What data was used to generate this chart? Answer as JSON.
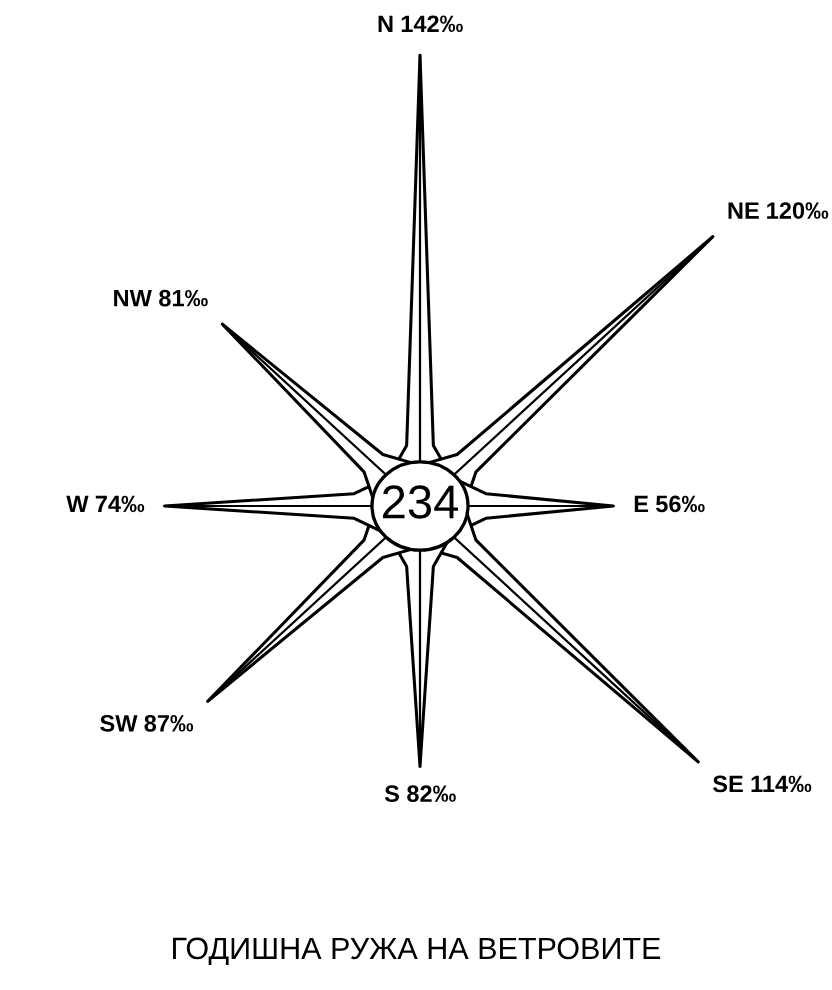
{
  "chart_data": {
    "type": "other",
    "title": "ГОДИШНА РУЖА НА ВЕТРОВИТЕ",
    "categories": [
      "N",
      "NE",
      "E",
      "SE",
      "S",
      "SW",
      "W",
      "NW"
    ],
    "values": [
      142,
      120,
      56,
      114,
      82,
      87,
      74,
      81
    ],
    "value_labels": [
      "142‰",
      "120‰",
      "56‰",
      "114‰",
      "82‰",
      "87‰",
      "74‰",
      "81‰"
    ],
    "annotations": [
      "234"
    ],
    "color": "#000000"
  }
}
